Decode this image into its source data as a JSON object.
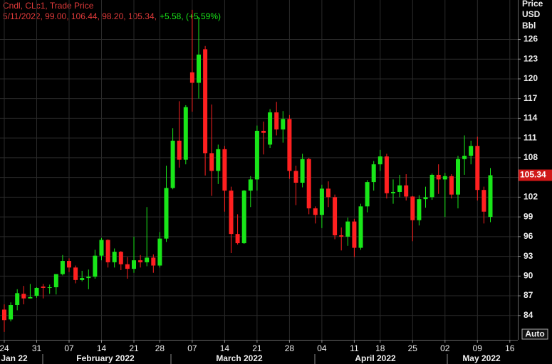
{
  "chart_data": {
    "type": "candlestick",
    "header_lines": [
      "Cndl, CLc1, Trade Price",
      "5/11/2022, 99.00, 106.44, 98.20, 105.34,",
      "+5.58, (+5.59%)"
    ],
    "y_axis_title": [
      "Price",
      "USD",
      "Bbl"
    ],
    "auto_button": "Auto",
    "categories": [
      "24",
      null,
      null,
      null,
      null,
      "31",
      null,
      null,
      null,
      null,
      "07",
      null,
      null,
      null,
      null,
      "14",
      null,
      null,
      null,
      null,
      "21",
      null,
      null,
      null,
      "28",
      null,
      null,
      null,
      null,
      "07",
      null,
      null,
      null,
      null,
      "14",
      null,
      null,
      null,
      null,
      "21",
      null,
      null,
      null,
      null,
      "28",
      null,
      null,
      null,
      null,
      "04",
      null,
      null,
      null,
      null,
      "11",
      null,
      null,
      null,
      "18",
      null,
      null,
      null,
      null,
      "25",
      null,
      null,
      null,
      null,
      "02",
      null,
      null,
      null,
      null,
      "09",
      null,
      null,
      null,
      null,
      "16"
    ],
    "month_labels": [
      "Jan 22",
      "February 2022",
      "March 2022",
      "April 2022",
      "May 2022"
    ],
    "open": [
      84.9,
      83.4,
      85.6,
      87.3,
      86.6,
      87.0,
      88.4,
      88.2,
      88.3,
      90.3,
      92.3,
      91.3,
      89.4,
      89.7,
      89.9,
      93.1,
      95.5,
      92.1,
      93.7,
      91.8,
      91.1,
      92.4,
      92.1,
      92.8,
      91.6,
      95.7,
      103.4,
      110.6,
      107.7,
      121.0,
      119.4,
      124.5,
      108.7,
      106.0,
      109.3,
      103.0,
      96.4,
      95.0,
      103.0,
      104.7,
      112.1,
      110.0,
      114.9,
      112.3,
      113.9,
      106.0,
      104.2,
      107.8,
      100.3,
      99.3,
      103.3,
      102.0,
      96.2,
      96.0,
      98.3,
      94.3,
      100.6,
      104.3,
      107.0,
      108.2,
      102.6,
      102.8,
      103.8,
      102.1,
      98.5,
      101.7,
      102.0,
      105.4,
      104.7,
      105.2,
      102.4,
      107.8,
      108.3,
      109.8,
      103.1,
      99,
      null,
      null,
      null
    ],
    "high": [
      85.7,
      86.0,
      88.0,
      88.5,
      88.8,
      88.3,
      88.8,
      88.7,
      90.3,
      93.2,
      92.7,
      91.6,
      90.8,
      91.0,
      94.0,
      95.8,
      95.6,
      94.2,
      93.8,
      92.9,
      96.0,
      93.2,
      100.5,
      93.3,
      96.7,
      106.8,
      112.5,
      116.6,
      116.0,
      130.5,
      129.4,
      125.0,
      116.1,
      110.0,
      109.8,
      103.6,
      99.4,
      103.1,
      105.2,
      112.9,
      113.5,
      115.4,
      116.5,
      115.1,
      114.5,
      106.8,
      108.6,
      108.0,
      100.6,
      103.9,
      104.4,
      102.4,
      97.4,
      98.9,
      98.7,
      101.0,
      104.6,
      107.5,
      109.2,
      108.6,
      104.7,
      105.4,
      105.5,
      102.2,
      102.3,
      103.6,
      105.6,
      107.0,
      105.7,
      105.5,
      108.3,
      111.4,
      110.6,
      111.2,
      103.6,
      106.44,
      null,
      null,
      null
    ],
    "low": [
      81.5,
      83.1,
      84.8,
      85.7,
      86.6,
      86.7,
      86.6,
      87.3,
      87.2,
      90.1,
      90.6,
      88.9,
      89.2,
      88.0,
      89.6,
      92.4,
      91.3,
      91.3,
      90.9,
      89.6,
      90.5,
      91.3,
      91.5,
      90.5,
      91.3,
      95.2,
      103.2,
      106.5,
      107.0,
      115.0,
      117.0,
      105.3,
      102.2,
      104.0,
      99.8,
      93.5,
      94.8,
      94.9,
      100.5,
      103.0,
      108.5,
      109.5,
      111.4,
      110.3,
      104.8,
      100.8,
      103.5,
      99.4,
      98.0,
      97.3,
      100.5,
      95.6,
      93.9,
      94.6,
      92.9,
      94.0,
      99.7,
      103.0,
      106.0,
      101.8,
      101.0,
      102.0,
      101.5,
      95.3,
      97.7,
      100.4,
      101.6,
      102.5,
      99.0,
      101.8,
      100.3,
      105.4,
      107.0,
      101.5,
      98.0,
      98.2,
      null,
      null,
      null
    ],
    "close": [
      83.3,
      85.6,
      87.4,
      86.6,
      86.8,
      88.2,
      88.2,
      88.3,
      90.3,
      92.3,
      91.3,
      89.4,
      89.7,
      89.9,
      93.1,
      95.5,
      92.1,
      93.7,
      91.8,
      91.1,
      92.4,
      92.1,
      92.8,
      91.6,
      95.7,
      103.4,
      110.6,
      107.7,
      115.7,
      119.4,
      123.7,
      108.7,
      106.0,
      109.3,
      103.0,
      96.4,
      95.0,
      103.0,
      104.7,
      112.1,
      111.8,
      114.9,
      112.3,
      113.9,
      106.0,
      104.2,
      107.8,
      100.3,
      99.3,
      103.3,
      102.0,
      96.2,
      96.0,
      98.3,
      94.3,
      100.6,
      104.3,
      107.0,
      108.2,
      102.6,
      102.8,
      103.8,
      102.1,
      98.5,
      101.7,
      102.0,
      105.4,
      104.7,
      105.2,
      102.4,
      107.8,
      108.3,
      109.8,
      103.1,
      99.8,
      105.34,
      null,
      null,
      null
    ],
    "up_color": "#19e619",
    "down_color": "#ff2020",
    "last_price": {
      "value": 105.34,
      "label": "105.34"
    },
    "ylim": [
      80.3,
      132
    ],
    "yticks": [
      84,
      87,
      90,
      93,
      96,
      99,
      102,
      105,
      108,
      111,
      114,
      117,
      120,
      123,
      126
    ],
    "grid": true
  }
}
